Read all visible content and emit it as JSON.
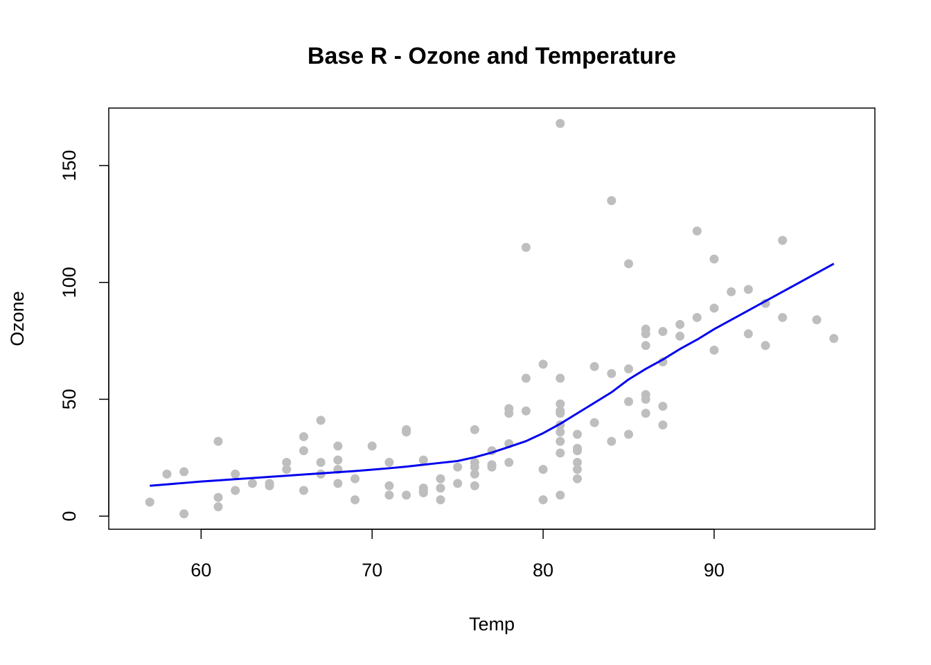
{
  "chart_data": {
    "type": "scatter",
    "title": "Base R - Ozone and Temperature",
    "xlabel": "Temp",
    "ylabel": "Ozone",
    "xlim": [
      54.6,
      99.4
    ],
    "ylim": [
      -5.6,
      174.6
    ],
    "xticks": [
      60,
      70,
      80,
      90
    ],
    "yticks": [
      0,
      50,
      100,
      150
    ],
    "grid": false,
    "legend": "none",
    "point_color": "#bebebe",
    "line_color": "#0000ee",
    "series": [
      {
        "type": "scatter",
        "points": [
          [
            57,
            6
          ],
          [
            58,
            18
          ],
          [
            59,
            19
          ],
          [
            59,
            1
          ],
          [
            61,
            32
          ],
          [
            61,
            8
          ],
          [
            61,
            4
          ],
          [
            62,
            18
          ],
          [
            62,
            11
          ],
          [
            63,
            14
          ],
          [
            64,
            14
          ],
          [
            64,
            13
          ],
          [
            65,
            23
          ],
          [
            65,
            20
          ],
          [
            66,
            34
          ],
          [
            66,
            28
          ],
          [
            66,
            11
          ],
          [
            67,
            41
          ],
          [
            67,
            23
          ],
          [
            67,
            18
          ],
          [
            68,
            30
          ],
          [
            68,
            24
          ],
          [
            68,
            20
          ],
          [
            68,
            14
          ],
          [
            69,
            16
          ],
          [
            69,
            7
          ],
          [
            70,
            30
          ],
          [
            71,
            23
          ],
          [
            71,
            13
          ],
          [
            71,
            9
          ],
          [
            72,
            37
          ],
          [
            72,
            36
          ],
          [
            72,
            9
          ],
          [
            73,
            24
          ],
          [
            73,
            12
          ],
          [
            73,
            11
          ],
          [
            73,
            10
          ],
          [
            74,
            16
          ],
          [
            74,
            12
          ],
          [
            74,
            7
          ],
          [
            75,
            21
          ],
          [
            75,
            14
          ],
          [
            76,
            37
          ],
          [
            76,
            23
          ],
          [
            76,
            21
          ],
          [
            76,
            18
          ],
          [
            76,
            13
          ],
          [
            77,
            28
          ],
          [
            77,
            22
          ],
          [
            77,
            21
          ],
          [
            78,
            46
          ],
          [
            78,
            44
          ],
          [
            78,
            31
          ],
          [
            78,
            23
          ],
          [
            79,
            115
          ],
          [
            79,
            59
          ],
          [
            79,
            45
          ],
          [
            80,
            65
          ],
          [
            80,
            20
          ],
          [
            80,
            7
          ],
          [
            81,
            168
          ],
          [
            81,
            59
          ],
          [
            81,
            48
          ],
          [
            81,
            45
          ],
          [
            81,
            44
          ],
          [
            81,
            39
          ],
          [
            81,
            36
          ],
          [
            81,
            32
          ],
          [
            81,
            27
          ],
          [
            81,
            9
          ],
          [
            82,
            35
          ],
          [
            82,
            29
          ],
          [
            82,
            28
          ],
          [
            82,
            23
          ],
          [
            82,
            20
          ],
          [
            82,
            16
          ],
          [
            83,
            64
          ],
          [
            83,
            40
          ],
          [
            84,
            135
          ],
          [
            84,
            61
          ],
          [
            84,
            32
          ],
          [
            85,
            108
          ],
          [
            85,
            63
          ],
          [
            85,
            49
          ],
          [
            85,
            35
          ],
          [
            86,
            80
          ],
          [
            86,
            78
          ],
          [
            86,
            73
          ],
          [
            86,
            52
          ],
          [
            86,
            50
          ],
          [
            86,
            44
          ],
          [
            87,
            79
          ],
          [
            87,
            66
          ],
          [
            87,
            47
          ],
          [
            87,
            39
          ],
          [
            88,
            82
          ],
          [
            88,
            77
          ],
          [
            89,
            122
          ],
          [
            89,
            85
          ],
          [
            90,
            110
          ],
          [
            90,
            89
          ],
          [
            90,
            71
          ],
          [
            91,
            96
          ],
          [
            92,
            97
          ],
          [
            92,
            78
          ],
          [
            93,
            91
          ],
          [
            93,
            73
          ],
          [
            94,
            118
          ],
          [
            94,
            85
          ],
          [
            96,
            84
          ],
          [
            97,
            76
          ]
        ]
      },
      {
        "type": "line",
        "points": [
          [
            57,
            13
          ],
          [
            58,
            13.6
          ],
          [
            59,
            14.2
          ],
          [
            60,
            14.8
          ],
          [
            61,
            15.3
          ],
          [
            62,
            15.8
          ],
          [
            63,
            16.3
          ],
          [
            64,
            16.8
          ],
          [
            65,
            17.3
          ],
          [
            66,
            17.8
          ],
          [
            67,
            18.3
          ],
          [
            68,
            18.8
          ],
          [
            69,
            19.3
          ],
          [
            70,
            19.9
          ],
          [
            71,
            20.5
          ],
          [
            72,
            21.2
          ],
          [
            73,
            22
          ],
          [
            74,
            22.8
          ],
          [
            75,
            23.6
          ],
          [
            76,
            25.2
          ],
          [
            77,
            27.2
          ],
          [
            78,
            29.6
          ],
          [
            79,
            32.1
          ],
          [
            80,
            35.5
          ],
          [
            81,
            39.5
          ],
          [
            82,
            44
          ],
          [
            83,
            48.5
          ],
          [
            84,
            53
          ],
          [
            85,
            58.5
          ],
          [
            86,
            63
          ],
          [
            87,
            67
          ],
          [
            88,
            71.5
          ],
          [
            89,
            75.5
          ],
          [
            90,
            80
          ],
          [
            91,
            84
          ],
          [
            92,
            88
          ],
          [
            93,
            92
          ],
          [
            94,
            96
          ],
          [
            95,
            100
          ],
          [
            96,
            104
          ],
          [
            97,
            108
          ]
        ]
      }
    ]
  }
}
